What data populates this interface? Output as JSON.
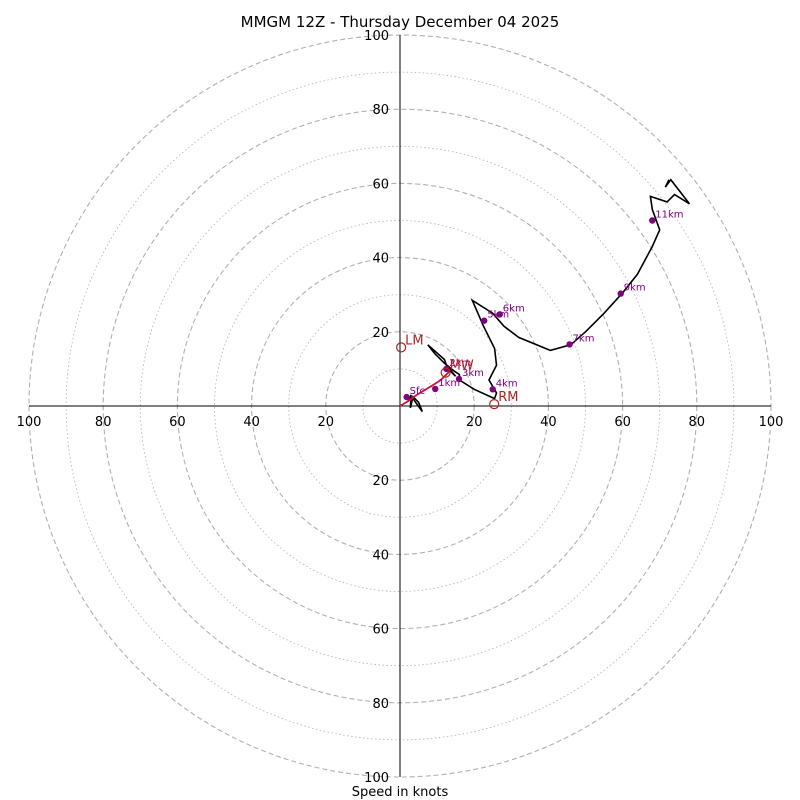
{
  "chart_data": {
    "type": "hodograph",
    "title": "MMGM 12Z - Thursday December 04 2025",
    "xlabel": "Speed in knots",
    "max_speed": 100,
    "ring_major_step": 20,
    "ring_minor_step": 10,
    "ticks": {
      "left": [
        "100",
        "80",
        "60",
        "40",
        "20"
      ],
      "right": [
        "20",
        "40",
        "60",
        "80",
        "100"
      ],
      "top": [
        "20",
        "40",
        "60",
        "80",
        "100"
      ],
      "bottom": [
        "20",
        "40",
        "60",
        "80",
        "100"
      ]
    },
    "tick_values": [
      20,
      40,
      60,
      80,
      100
    ],
    "colors": {
      "trace": "#000000",
      "low_trace": "#dc143c",
      "height_marker": "#800080",
      "storm_motion": "#b22222",
      "ring": "#b0b0b0",
      "axis": "#000000"
    },
    "trace": [
      [
        0.0,
        0.0
      ],
      [
        2.5,
        1.5
      ],
      [
        4.5,
        3.0
      ],
      [
        7.0,
        4.5
      ],
      [
        9.5,
        6.0
      ],
      [
        11.0,
        7.0
      ],
      [
        12.5,
        8.5
      ],
      [
        13.5,
        9.5
      ],
      [
        15.0,
        8.0
      ],
      [
        12.5,
        11.0
      ],
      [
        12.0,
        12.5
      ],
      [
        7.5,
        16.5
      ],
      [
        9.5,
        14.0
      ],
      [
        12.0,
        11.5
      ],
      [
        14.5,
        9.5
      ],
      [
        16.0,
        8.5
      ],
      [
        16.0,
        7.0
      ],
      [
        20.0,
        4.5
      ],
      [
        25.5,
        2.0
      ],
      [
        26.0,
        3.5
      ],
      [
        24.0,
        7.0
      ],
      [
        26.0,
        11.0
      ],
      [
        25.5,
        15.5
      ],
      [
        22.5,
        21.5
      ],
      [
        19.5,
        28.5
      ],
      [
        25.0,
        25.0
      ],
      [
        28.0,
        21.5
      ],
      [
        32.0,
        18.5
      ],
      [
        40.5,
        15.0
      ],
      [
        46.0,
        16.5
      ],
      [
        50.0,
        20.0
      ],
      [
        55.0,
        25.0
      ],
      [
        60.0,
        30.5
      ],
      [
        64.0,
        35.5
      ],
      [
        68.0,
        43.0
      ],
      [
        70.0,
        47.5
      ],
      [
        68.0,
        53.0
      ],
      [
        67.5,
        56.5
      ],
      [
        72.0,
        55.0
      ],
      [
        74.0,
        57.0
      ],
      [
        78.0,
        54.5
      ],
      [
        73.0,
        61.0
      ],
      [
        71.5,
        59.0
      ],
      [
        72.5,
        61.0
      ]
    ],
    "trace_tail": [
      [
        2.5,
        1.5
      ],
      [
        3.0,
        3.0
      ],
      [
        2.8,
        -0.5
      ],
      [
        3.5,
        2.5
      ],
      [
        5.0,
        1.0
      ],
      [
        6.0,
        -1.5
      ],
      [
        3.5,
        2.0
      ]
    ],
    "low_level_end_index": 7,
    "height_markers": [
      {
        "label": "Sfc",
        "u": 1.8,
        "v": 2.4
      },
      {
        "label": "1km",
        "u": 9.5,
        "v": 4.6
      },
      {
        "label": "2km",
        "u": 12.5,
        "v": 10.0
      },
      {
        "label": "3km",
        "u": 15.9,
        "v": 7.3
      },
      {
        "label": "4km",
        "u": 25.0,
        "v": 4.5
      },
      {
        "label": "5km",
        "u": 22.7,
        "v": 23.0
      },
      {
        "label": "6km",
        "u": 26.9,
        "v": 24.7
      },
      {
        "label": "7km",
        "u": 45.7,
        "v": 16.6
      },
      {
        "label": "9km",
        "u": 59.5,
        "v": 30.3
      },
      {
        "label": "11km",
        "u": 68.0,
        "v": 50.0
      }
    ],
    "storm_motion": [
      {
        "label": "LM",
        "u": 0.3,
        "v": 15.8
      },
      {
        "label": "MW",
        "u": 12.3,
        "v": 9.0
      },
      {
        "label": "RM",
        "u": 25.4,
        "v": 0.5
      }
    ]
  }
}
